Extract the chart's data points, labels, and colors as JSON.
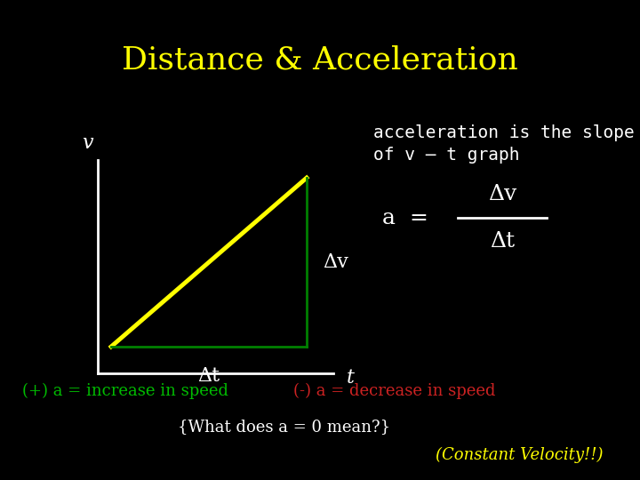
{
  "title": "Distance & Acceleration",
  "title_color": "#FFFF00",
  "title_fontsize": 26,
  "bg_color": "#000000",
  "graph_line_color": "#FFFF00",
  "axis_color": "#FFFFFF",
  "triangle_color": "#008000",
  "text_color": "#FFFFFF",
  "green_text_color": "#00BB00",
  "red_text_color": "#CC2222",
  "accel_text_line1": "acceleration is the slope",
  "accel_text_line2": "of v – t graph",
  "delta_v_label": "Δv",
  "delta_t_label": "Δt",
  "v_label": "v",
  "t_label": "t",
  "a_equals": "a  =",
  "plus_a_text": "(+) a = increase in speed",
  "minus_a_text": "(-) a = decrease in speed",
  "what_does": "{What does a = 0 mean?}",
  "constant_vel": "(Constant Velocity!!)",
  "yellow_color": "#FFFF00"
}
